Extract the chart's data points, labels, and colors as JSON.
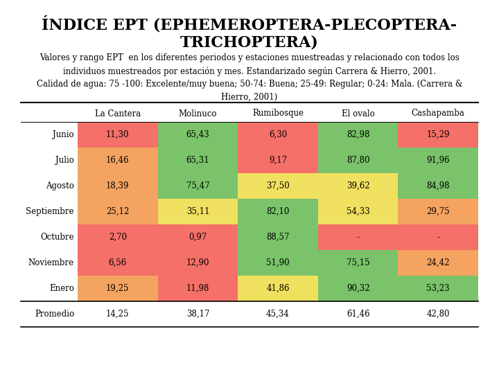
{
  "title": "ÍNDICE EPT (EPHEMEROPTERA-PLECOPTERA-\nTRICHOPTERA)",
  "subtitle": "Valores y rango EPT  en los diferentes periodos y estaciones muestreadas y relacionado con todos los\nindividuos muestreados por estación y mes. Estandarizado según Carrera & Hierro, 2001.\nCalidad de agua: 75 -100: Excelente/muy buena; 50-74: Buena; 25-49: Regular; 0-24: Mala. (Carrera &\nHierro, 2001)",
  "columns": [
    "La Cantera",
    "Molinuco",
    "Rumibosque",
    "El ovalo",
    "Cashapamba"
  ],
  "rows": [
    "Junio",
    "Julio",
    "Agosto",
    "Septiembre",
    "Octubre",
    "Noviembre",
    "Enero"
  ],
  "promedio_label": "Promedio",
  "data": [
    [
      "11,30",
      "65,43",
      "6,30",
      "82,98",
      "15,29"
    ],
    [
      "16,46",
      "65,31",
      "9,17",
      "87,80",
      "91,96"
    ],
    [
      "18,39",
      "75,47",
      "37,50",
      "39,62",
      "84,98"
    ],
    [
      "25,12",
      "35,11",
      "82,10",
      "54,33",
      "29,75"
    ],
    [
      "2,70",
      "0,97",
      "88,57",
      "-",
      "-"
    ],
    [
      "6,56",
      "12,90",
      "51,90",
      "75,15",
      "24,42"
    ],
    [
      "19,25",
      "11,98",
      "41,86",
      "90,32",
      "53,23"
    ]
  ],
  "promedio": [
    "14,25",
    "38,17",
    "45,34",
    "61,46",
    "42,80"
  ],
  "colors": [
    [
      "#f47068",
      "#7ac36a",
      "#f47068",
      "#7ac36a",
      "#f47068"
    ],
    [
      "#f4a460",
      "#7ac36a",
      "#f47068",
      "#7ac36a",
      "#7ac36a"
    ],
    [
      "#f4a460",
      "#7ac36a",
      "#f0e060",
      "#f0e060",
      "#7ac36a"
    ],
    [
      "#f4a460",
      "#f0e060",
      "#7ac36a",
      "#f0e060",
      "#f4a460"
    ],
    [
      "#f47068",
      "#f47068",
      "#7ac36a",
      "#f47068",
      "#f47068"
    ],
    [
      "#f47068",
      "#f47068",
      "#7ac36a",
      "#7ac36a",
      "#f4a460"
    ],
    [
      "#f4a460",
      "#f47068",
      "#f0e060",
      "#7ac36a",
      "#7ac36a"
    ]
  ],
  "bg_color": "#ffffff",
  "title_fontsize": 16,
  "subtitle_fontsize": 8.5,
  "table_fontsize": 8.5
}
